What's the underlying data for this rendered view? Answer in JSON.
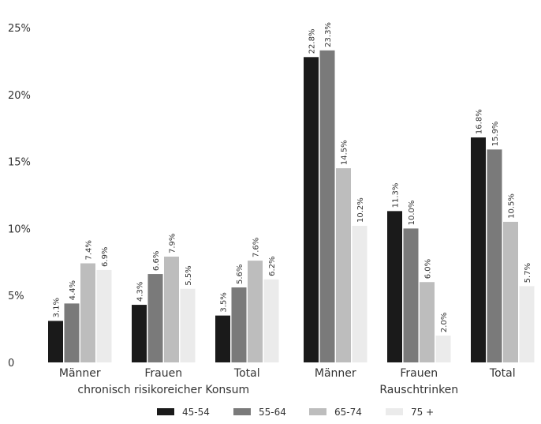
{
  "chart_data": {
    "type": "bar",
    "categories": [
      "Männer",
      "Frauen",
      "Total",
      "Männer",
      "Frauen",
      "Total"
    ],
    "groups": [
      {
        "label": "chronisch risikoreicher Konsum",
        "categories": [
          0,
          1,
          2
        ]
      },
      {
        "label": "Rauschtrinken",
        "categories": [
          3,
          4,
          5
        ]
      }
    ],
    "series": [
      {
        "name": "45-54",
        "color": "#1a1a1a",
        "values": [
          3.1,
          4.3,
          3.5,
          22.8,
          11.3,
          16.8
        ],
        "labels": [
          "3.1%",
          "4.3%",
          "3.5%",
          "22.8%",
          "11.3%",
          "16.8%"
        ]
      },
      {
        "name": "55-64",
        "color": "#7a7a7a",
        "values": [
          4.4,
          6.6,
          5.6,
          23.3,
          10.0,
          15.9
        ],
        "labels": [
          "4.4%",
          "6.6%",
          "5.6%",
          "23.3%",
          "10.0%",
          "15.9%"
        ]
      },
      {
        "name": "65-74",
        "color": "#bdbdbd",
        "values": [
          7.4,
          7.9,
          7.6,
          14.5,
          6.0,
          10.5
        ],
        "labels": [
          "7.4%",
          "7.9%",
          "7.6%",
          "14.5%",
          "6.0%",
          "10.5%"
        ]
      },
      {
        "name": "75 +",
        "color": "#ebebeb",
        "values": [
          6.9,
          5.5,
          6.2,
          10.2,
          2.0,
          5.7
        ],
        "labels": [
          "6.9%",
          "5.5%",
          "6.2%",
          "10.2%",
          "2.0%",
          "5.7%"
        ]
      }
    ],
    "yticks": [
      "0",
      "5%",
      "10%",
      "15%",
      "20%",
      "25%"
    ],
    "ylim": [
      0,
      25
    ],
    "grid": false,
    "legend_position": "bottom"
  }
}
